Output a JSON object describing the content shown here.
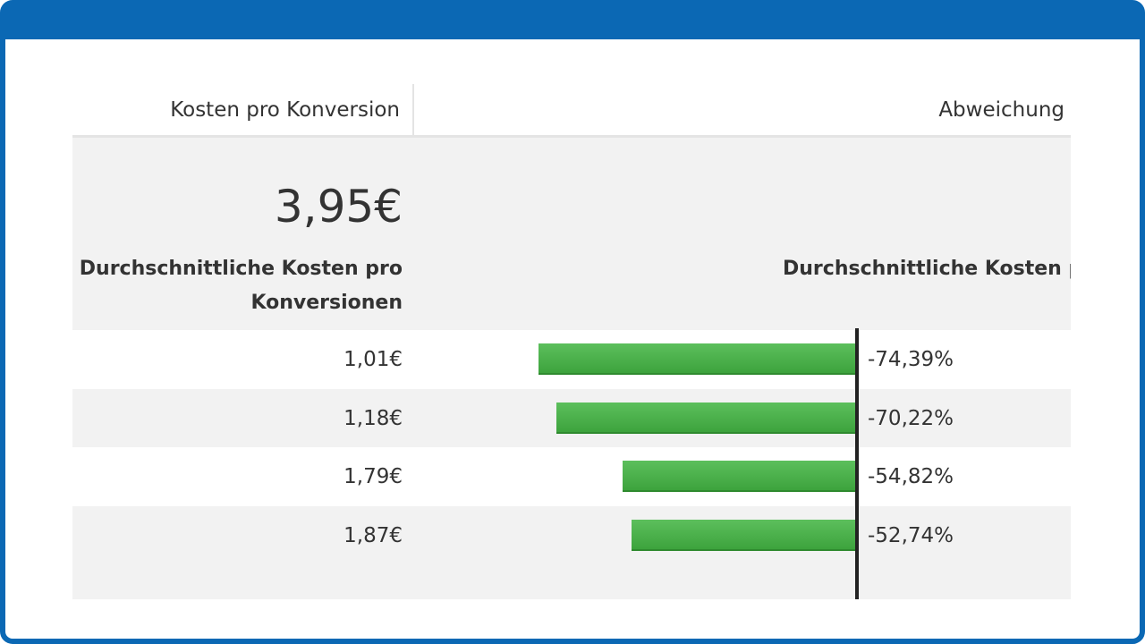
{
  "header": {
    "col1_title": "Kosten pro Konversion",
    "col2_title": "Abweichung"
  },
  "summary": {
    "value": "3,95€",
    "col1_label": "Durchschnittliche Kosten pro Konversionen",
    "col2_label": "Durchschnittliche Kosten p"
  },
  "colors": {
    "frame": "#0b68b4",
    "bar": "#4cb04c",
    "axis": "#222222"
  },
  "rows": [
    {
      "cost": "1,01€",
      "deviation_label": "-74,39%",
      "deviation": -74.39
    },
    {
      "cost": "1,18€",
      "deviation_label": "-70,22%",
      "deviation": -70.22
    },
    {
      "cost": "1,79€",
      "deviation_label": "-54,82%",
      "deviation": -54.82
    },
    {
      "cost": "1,87€",
      "deviation_label": "-52,74%",
      "deviation": -52.74
    }
  ],
  "chart_data": {
    "type": "bar",
    "categories": [
      "1,01€",
      "1,18€",
      "1,79€",
      "1,87€"
    ],
    "values": [
      -74.39,
      -70.22,
      -54.82,
      -52.74
    ]
  }
}
